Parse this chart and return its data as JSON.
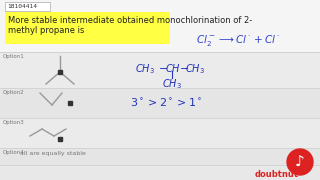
{
  "bg_color": "#e8e8e8",
  "title_bg_color": "#f5f5f5",
  "highlight_yellow": "#ffff44",
  "id_text": "18104414",
  "title_text1": "More stable intermediate obtained monochlorination of 2-",
  "title_text2": "methyl propane is",
  "option1_label": "Option1",
  "option2_label": "Option2",
  "option3_label": "Option3",
  "option4_label": "Option4",
  "option4_text": "all are equally stable",
  "text_color": "#222222",
  "option_label_color": "#777777",
  "handwriting_color": "#2233bb",
  "bond_color": "#999999",
  "dot_color": "#333333",
  "border_color": "#cccccc",
  "doubnut_red": "#dd2222",
  "white": "#ffffff",
  "option_bg": "#f0f0f0",
  "reaction_color": "#3344cc"
}
